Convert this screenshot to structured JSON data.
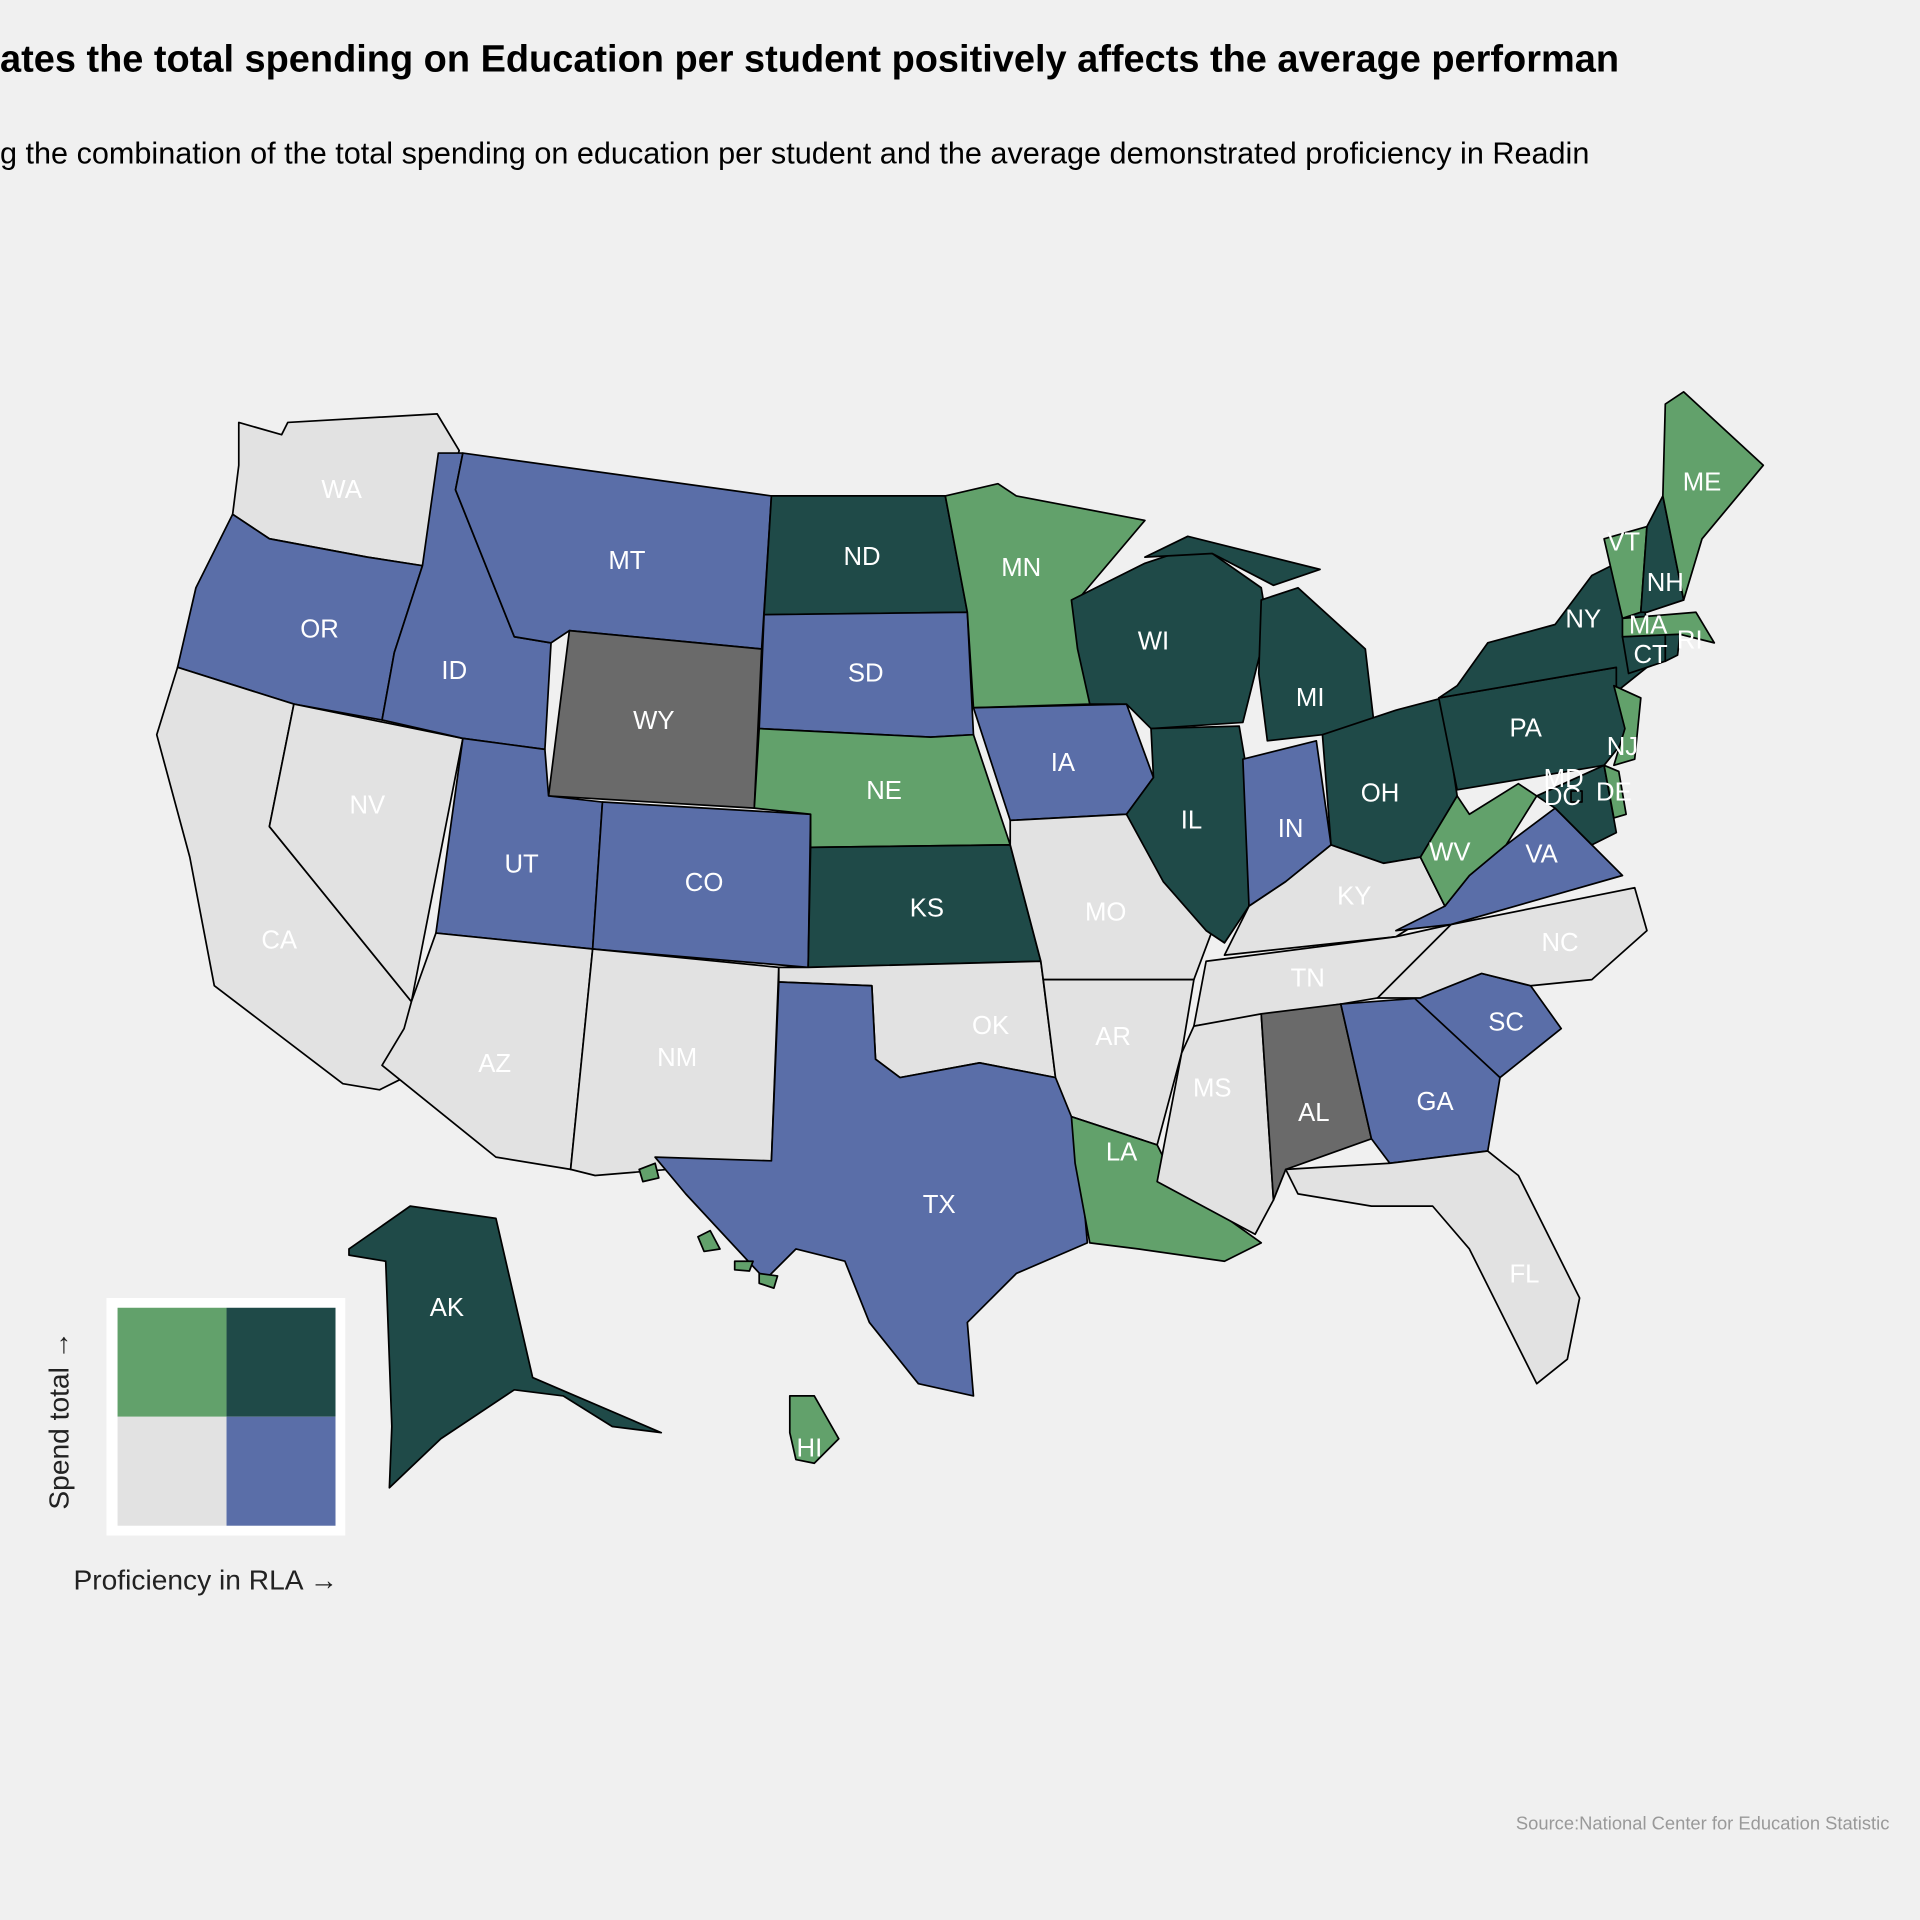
{
  "title": "ates the total spending on Education per student positively affects the average performan",
  "subtitle": "g the combination of the total spending on education per student and the average demonstrated proficiency in Readin",
  "states": [
    {
      "abbr": "WA",
      "color": "#e2e2e2"
    },
    {
      "abbr": "OR",
      "color": "#5a6ea8"
    },
    {
      "abbr": "CA",
      "color": "#e2e2e2"
    },
    {
      "abbr": "NV",
      "color": "#e2e2e2"
    },
    {
      "abbr": "ID",
      "color": "#5a6ea8"
    },
    {
      "abbr": "MT",
      "color": "#5a6ea8"
    },
    {
      "abbr": "WY",
      "color": "#6a6a6a"
    },
    {
      "abbr": "UT",
      "color": "#5a6ea8"
    },
    {
      "abbr": "CO",
      "color": "#5a6ea8"
    },
    {
      "abbr": "AZ",
      "color": "#e2e2e2"
    },
    {
      "abbr": "NM",
      "color": "#e2e2e2"
    },
    {
      "abbr": "ND",
      "color": "#1f4a48"
    },
    {
      "abbr": "SD",
      "color": "#5a6ea8"
    },
    {
      "abbr": "NE",
      "color": "#62a16b"
    },
    {
      "abbr": "KS",
      "color": "#1f4a48"
    },
    {
      "abbr": "OK",
      "color": "#e2e2e2"
    },
    {
      "abbr": "TX",
      "color": "#5a6ea8"
    },
    {
      "abbr": "MN",
      "color": "#62a16b"
    },
    {
      "abbr": "IA",
      "color": "#5a6ea8"
    },
    {
      "abbr": "MO",
      "color": "#e2e2e2"
    },
    {
      "abbr": "AR",
      "color": "#e2e2e2"
    },
    {
      "abbr": "LA",
      "color": "#62a16b"
    },
    {
      "abbr": "WI",
      "color": "#1f4a48"
    },
    {
      "abbr": "IL",
      "color": "#1f4a48"
    },
    {
      "abbr": "MI",
      "color": "#1f4a48"
    },
    {
      "abbr": "IN",
      "color": "#5a6ea8"
    },
    {
      "abbr": "OH",
      "color": "#1f4a48"
    },
    {
      "abbr": "KY",
      "color": "#e2e2e2"
    },
    {
      "abbr": "TN",
      "color": "#e2e2e2"
    },
    {
      "abbr": "MS",
      "color": "#e2e2e2"
    },
    {
      "abbr": "AL",
      "color": "#6a6a6a"
    },
    {
      "abbr": "GA",
      "color": "#5a6ea8"
    },
    {
      "abbr": "FL",
      "color": "#e2e2e2"
    },
    {
      "abbr": "SC",
      "color": "#5a6ea8"
    },
    {
      "abbr": "NC",
      "color": "#e2e2e2"
    },
    {
      "abbr": "VA",
      "color": "#5a6ea8"
    },
    {
      "abbr": "WV",
      "color": "#62a16b"
    },
    {
      "abbr": "PA",
      "color": "#1f4a48"
    },
    {
      "abbr": "NY",
      "color": "#1f4a48"
    },
    {
      "abbr": "MD",
      "color": "#1f4a48"
    },
    {
      "abbr": "DE",
      "color": "#62a16b"
    },
    {
      "abbr": "NJ",
      "color": "#62a16b"
    },
    {
      "abbr": "CT",
      "color": "#1f4a48"
    },
    {
      "abbr": "RI",
      "color": "#1f4a48"
    },
    {
      "abbr": "MA",
      "color": "#62a16b"
    },
    {
      "abbr": "VT",
      "color": "#62a16b"
    },
    {
      "abbr": "NH",
      "color": "#1f4a48"
    },
    {
      "abbr": "ME",
      "color": "#62a16b"
    },
    {
      "abbr": "DC",
      "color": "#1f4a48"
    },
    {
      "abbr": "AK",
      "color": "#1f4a48"
    },
    {
      "abbr": "HI",
      "color": "#62a16b"
    }
  ],
  "legend": {
    "y_label": "Spend total →",
    "x_label": "Proficiency in RLA →",
    "colors": [
      [
        "#62a16b",
        "#1f4a48"
      ],
      [
        "#e2e2e2",
        "#5a6ea8"
      ]
    ]
  },
  "source": "Source:National Center for Education Statistic"
}
